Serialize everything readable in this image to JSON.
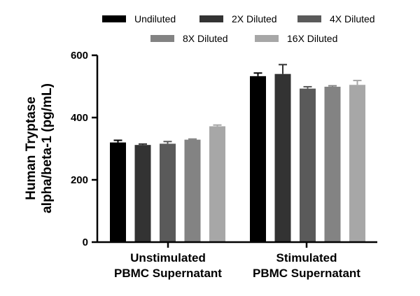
{
  "chart_data": {
    "type": "bar",
    "title": "",
    "ylabel_line1": "Human Tryptase",
    "ylabel_line2": "alpha/beta-1 (pg/mL)",
    "xlabel": "",
    "ylim": [
      0,
      600
    ],
    "yticks": [
      "0",
      "200",
      "400",
      "600"
    ],
    "ytick_values": [
      0,
      200,
      400,
      600
    ],
    "groups": [
      {
        "line1": "Unstimulated",
        "line2": "PBMC Supernatant"
      },
      {
        "line1": "Stimulated",
        "line2": "PBMC Supernatant"
      }
    ],
    "legend_position": "top",
    "series": [
      {
        "name": "Undiluted",
        "color": "#000000",
        "values": [
          320,
          533
        ],
        "errors": [
          7,
          10
        ]
      },
      {
        "name": "2X Diluted",
        "color": "#333333",
        "values": [
          312,
          540
        ],
        "errors": [
          3,
          30
        ]
      },
      {
        "name": "4X Diluted",
        "color": "#5a5a5a",
        "values": [
          316,
          493
        ],
        "errors": [
          7,
          6
        ]
      },
      {
        "name": "8X Diluted",
        "color": "#838383",
        "values": [
          329,
          499
        ],
        "errors": [
          2,
          3
        ]
      },
      {
        "name": "16X Diluted",
        "color": "#a7a7a7",
        "values": [
          372,
          505
        ],
        "errors": [
          4,
          14
        ]
      }
    ]
  }
}
